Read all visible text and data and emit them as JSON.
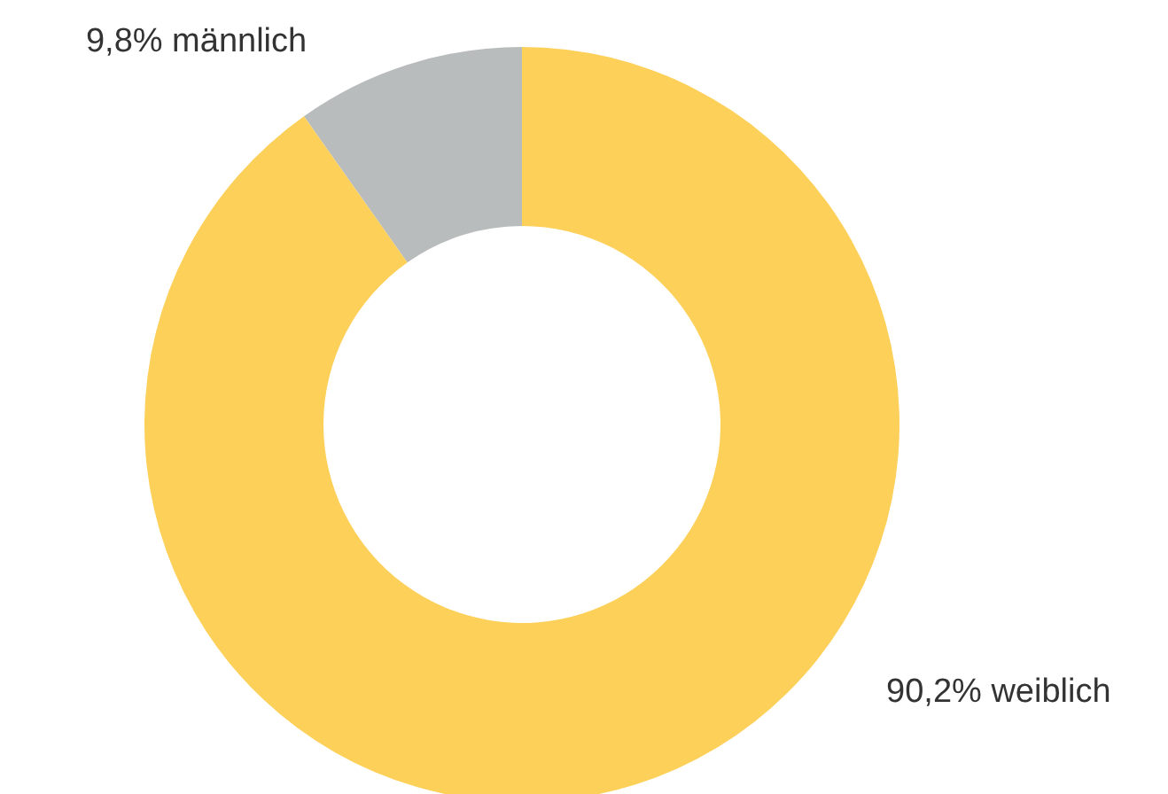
{
  "chart_data": {
    "type": "donut",
    "categories": [
      "männlich",
      "weiblich"
    ],
    "values": [
      9.8,
      90.2
    ],
    "colors": [
      "#b9bcbc",
      "#fdd05a"
    ],
    "value_labels": [
      "9,8%",
      "90,2%"
    ]
  }
}
